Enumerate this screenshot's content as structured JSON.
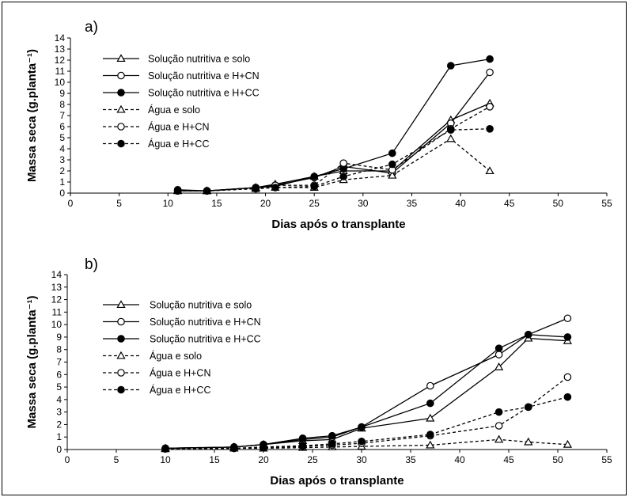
{
  "chart_data": [
    {
      "type": "line",
      "panel_label": "a)",
      "xlabel": "Dias após o transplante",
      "ylabel": "Massa seca (g.planta⁻¹)",
      "xlim": [
        0,
        55
      ],
      "ylim": [
        0,
        14
      ],
      "xticks": [
        0,
        5,
        10,
        15,
        20,
        25,
        30,
        35,
        40,
        45,
        50,
        55
      ],
      "yticks": [
        0,
        1,
        2,
        3,
        4,
        5,
        6,
        7,
        8,
        9,
        10,
        11,
        12,
        13,
        14
      ],
      "grid": false,
      "legend_position": "top-left",
      "series": [
        {
          "name": "Solução nutritiva e solo",
          "marker": "triangle-open",
          "dash": "solid",
          "x": [
            11,
            14,
            19,
            21,
            25,
            28,
            33,
            39,
            43
          ],
          "y": [
            0.25,
            0.2,
            0.5,
            0.8,
            1.5,
            2.0,
            2.0,
            6.6,
            8.1
          ]
        },
        {
          "name": "Solução nutritiva e H+CN",
          "marker": "circle-open",
          "dash": "solid",
          "x": [
            11,
            14,
            19,
            21,
            25,
            28,
            33,
            39,
            43
          ],
          "y": [
            0.2,
            0.2,
            0.5,
            0.7,
            1.4,
            2.4,
            1.8,
            6.3,
            10.9
          ]
        },
        {
          "name": "Solução nutritiva e H+CC",
          "marker": "circle-filled",
          "dash": "solid",
          "x": [
            11,
            14,
            19,
            21,
            25,
            28,
            33,
            39,
            43
          ],
          "y": [
            0.3,
            0.2,
            0.5,
            0.6,
            1.5,
            2.2,
            3.6,
            11.5,
            12.1
          ]
        },
        {
          "name": "Água e solo",
          "marker": "triangle-open",
          "dash": "dashed",
          "x": [
            11,
            14,
            19,
            21,
            25,
            28,
            33,
            39,
            43
          ],
          "y": [
            0.2,
            0.2,
            0.4,
            0.5,
            0.5,
            1.2,
            1.6,
            4.9,
            2.0
          ]
        },
        {
          "name": "Água e H+CN",
          "marker": "circle-open",
          "dash": "dashed",
          "x": [
            11,
            14,
            19,
            21,
            25,
            28,
            33,
            39,
            43
          ],
          "y": [
            0.2,
            0.2,
            0.4,
            0.7,
            0.7,
            2.7,
            2.1,
            5.8,
            7.8
          ]
        },
        {
          "name": "Água e H+CC",
          "marker": "circle-filled",
          "dash": "dashed",
          "x": [
            11,
            14,
            19,
            21,
            25,
            28,
            33,
            39,
            43
          ],
          "y": [
            0.2,
            0.2,
            0.4,
            0.5,
            0.6,
            1.5,
            2.6,
            5.7,
            5.8
          ]
        }
      ]
    },
    {
      "type": "line",
      "panel_label": "b)",
      "xlabel": "Dias após o transplante",
      "ylabel": "Massa seca (g.planta⁻¹)",
      "xlim": [
        0,
        55
      ],
      "ylim": [
        0,
        14
      ],
      "xticks": [
        0,
        5,
        10,
        15,
        20,
        25,
        30,
        35,
        40,
        45,
        50,
        55
      ],
      "yticks": [
        0,
        1,
        2,
        3,
        4,
        5,
        6,
        7,
        8,
        9,
        10,
        11,
        12,
        13,
        14
      ],
      "grid": false,
      "legend_position": "top-left",
      "series": [
        {
          "name": "Solução nutritiva e solo",
          "marker": "triangle-open",
          "dash": "solid",
          "x": [
            10,
            17,
            20,
            24,
            27,
            30,
            37,
            44,
            47,
            51
          ],
          "y": [
            0.1,
            0.2,
            0.4,
            0.7,
            0.8,
            1.7,
            2.5,
            6.6,
            8.9,
            8.7
          ]
        },
        {
          "name": "Solução nutritiva e H+CN",
          "marker": "circle-open",
          "dash": "solid",
          "x": [
            10,
            17,
            20,
            24,
            27,
            30,
            37,
            44,
            47,
            51
          ],
          "y": [
            0.1,
            0.2,
            0.4,
            0.8,
            1.0,
            1.8,
            5.1,
            7.6,
            9.2,
            10.5
          ]
        },
        {
          "name": "Solução nutritiva e H+CC",
          "marker": "circle-filled",
          "dash": "solid",
          "x": [
            10,
            17,
            20,
            24,
            27,
            30,
            37,
            44,
            47,
            51
          ],
          "y": [
            0.1,
            0.2,
            0.4,
            0.9,
            1.1,
            1.8,
            3.7,
            8.1,
            9.2,
            9.0
          ]
        },
        {
          "name": "Água e solo",
          "marker": "triangle-open",
          "dash": "dashed",
          "x": [
            10,
            17,
            20,
            24,
            27,
            30,
            37,
            44,
            47,
            51
          ],
          "y": [
            0.05,
            0.1,
            0.1,
            0.15,
            0.2,
            0.25,
            0.35,
            0.8,
            0.6,
            0.4
          ]
        },
        {
          "name": "Água e H+CN",
          "marker": "circle-open",
          "dash": "dashed",
          "x": [
            10,
            17,
            20,
            24,
            27,
            30,
            37,
            44,
            47,
            51
          ],
          "y": [
            0.05,
            0.1,
            0.15,
            0.25,
            0.35,
            0.5,
            1.1,
            1.9,
            3.4,
            5.8
          ]
        },
        {
          "name": "Água e H+CC",
          "marker": "circle-filled",
          "dash": "dashed",
          "x": [
            10,
            17,
            20,
            24,
            27,
            30,
            37,
            44,
            47,
            51
          ],
          "y": [
            0.05,
            0.1,
            0.2,
            0.3,
            0.45,
            0.65,
            1.2,
            3.0,
            3.4,
            4.2
          ]
        }
      ]
    }
  ]
}
